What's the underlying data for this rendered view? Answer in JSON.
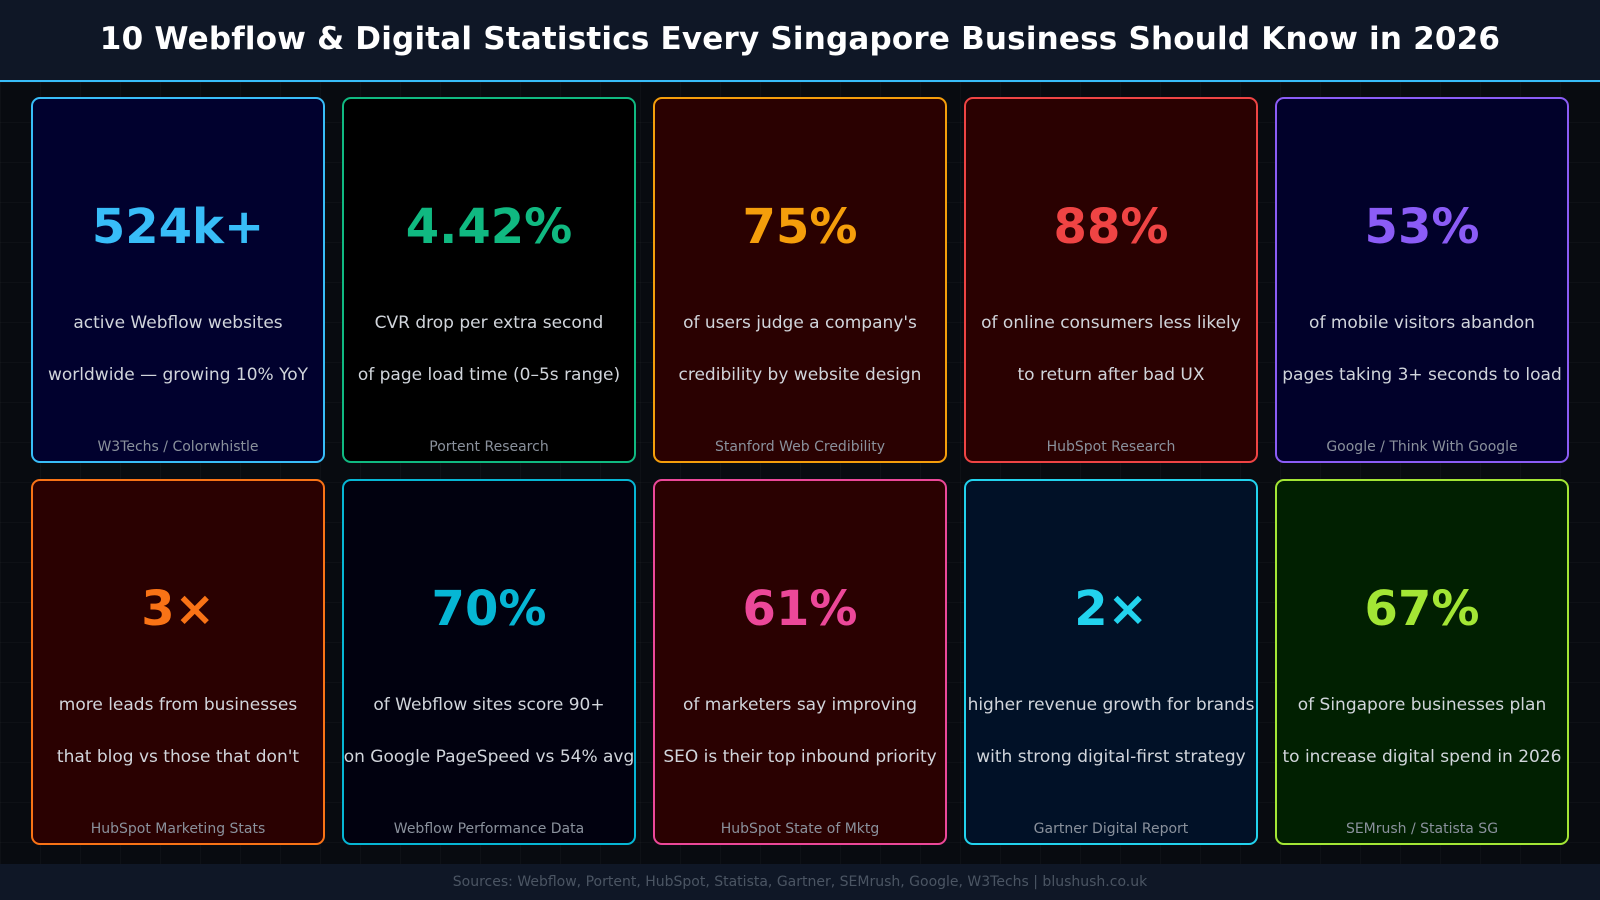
{
  "title": "10 Webflow & Digital Statistics Every Singapore Business Should Know in 2026",
  "cards": [
    {
      "value": "524k+",
      "line1": "active Webflow websites",
      "line2": "worldwide — growing 10% YoY",
      "source": "W3Techs / Colorwhistle",
      "accent": "#38bdf8",
      "bg": "#01012e"
    },
    {
      "value": "4.42%",
      "line1": "CVR drop per extra second",
      "line2": "of page load time (0–5s range)",
      "source": "Portent Research",
      "accent": "#10b981",
      "bg": "#000000"
    },
    {
      "value": "75%",
      "line1": "of users judge a company's",
      "line2": "credibility by website design",
      "source": "Stanford Web Credibility",
      "accent": "#f59e0b",
      "bg": "#2a0101"
    },
    {
      "value": "88%",
      "line1": "of online consumers less likely",
      "line2": "to return after bad UX",
      "source": "HubSpot Research",
      "accent": "#ef4444",
      "bg": "#2a0101"
    },
    {
      "value": "53%",
      "line1": "of mobile visitors abandon",
      "line2": "pages taking 3+ seconds to load",
      "source": "Google / Think With Google",
      "accent": "#8b5cf6",
      "bg": "#01012a"
    },
    {
      "value": "3×",
      "line1": "more leads from businesses",
      "line2": "that blog vs those that don't",
      "source": "HubSpot Marketing Stats",
      "accent": "#f97316",
      "bg": "#2a0101"
    },
    {
      "value": "70%",
      "line1": "of Webflow sites score 90+",
      "line2": "on Google PageSpeed vs 54% avg",
      "source": "Webflow Performance Data",
      "accent": "#06b6d4",
      "bg": "#01010f"
    },
    {
      "value": "61%",
      "line1": "of marketers say improving",
      "line2": "SEO is their top inbound priority",
      "source": "HubSpot State of Mktg",
      "accent": "#ec4899",
      "bg": "#2a0101"
    },
    {
      "value": "2×",
      "line1": "higher revenue growth for brands",
      "line2": "with strong digital-first strategy",
      "source": "Gartner Digital Report",
      "accent": "#22d3ee",
      "bg": "#011127"
    },
    {
      "value": "67%",
      "line1": "of Singapore businesses plan",
      "line2": "to increase digital spend in 2026",
      "source": "SEMrush / Statista SG",
      "accent": "#a3e635",
      "bg": "#012001"
    }
  ],
  "footer": "Sources: Webflow, Portent, HubSpot, Statista, Gartner, SEMrush, Google, W3Techs  |  blushush.co.uk"
}
